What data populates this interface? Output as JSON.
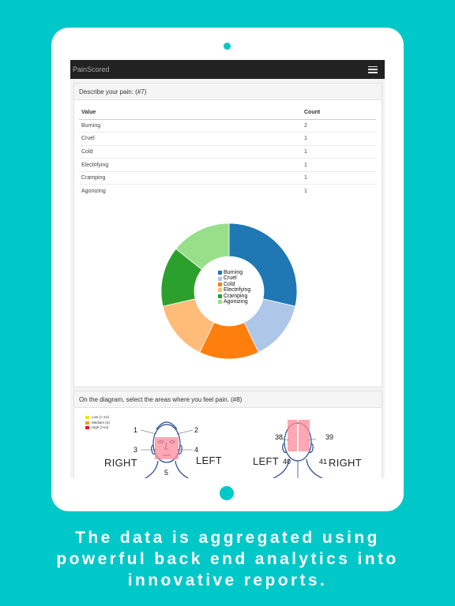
{
  "app": {
    "title": "PainScored"
  },
  "question7": {
    "heading": "Describe your pain: (#7)",
    "columns": [
      "Value",
      "Count"
    ],
    "rows": [
      {
        "value": "Burning",
        "count": "2"
      },
      {
        "value": "Cruel",
        "count": "1"
      },
      {
        "value": "Cold",
        "count": "1"
      },
      {
        "value": "Electrifying",
        "count": "1"
      },
      {
        "value": "Cramping",
        "count": "1"
      },
      {
        "value": "Agonizing",
        "count": "1"
      }
    ]
  },
  "chart_data": {
    "type": "pie",
    "categories": [
      "Burning",
      "Cruel",
      "Cold",
      "Electrifying",
      "Cramping",
      "Agonizing"
    ],
    "values": [
      2,
      1,
      1,
      1,
      1,
      1
    ],
    "colors": [
      "#1f77b4",
      "#aec7e8",
      "#ff7f0e",
      "#ffbb78",
      "#2ca02c",
      "#98df8a"
    ],
    "legend": "center"
  },
  "question8": {
    "heading": "On the diagram, select the areas where you feel pain. (#8)",
    "legend": [
      {
        "label": "Low (<-1σ)",
        "color": "#f5e600"
      },
      {
        "label": "Medium (σ)",
        "color": "#f0a020"
      },
      {
        "label": "High (>1σ)",
        "color": "#d81c1c"
      }
    ],
    "front": {
      "left": "RIGHT",
      "right": "LEFT",
      "labels": [
        "1",
        "2",
        "3",
        "4",
        "5"
      ]
    },
    "back": {
      "left": "LEFT",
      "right": "RIGHT",
      "labels": [
        "38",
        "39",
        "40",
        "41"
      ]
    }
  },
  "caption": {
    "line1": "The data is aggregated using",
    "line2": "powerful back end analytics into",
    "line3": "innovative reports."
  }
}
